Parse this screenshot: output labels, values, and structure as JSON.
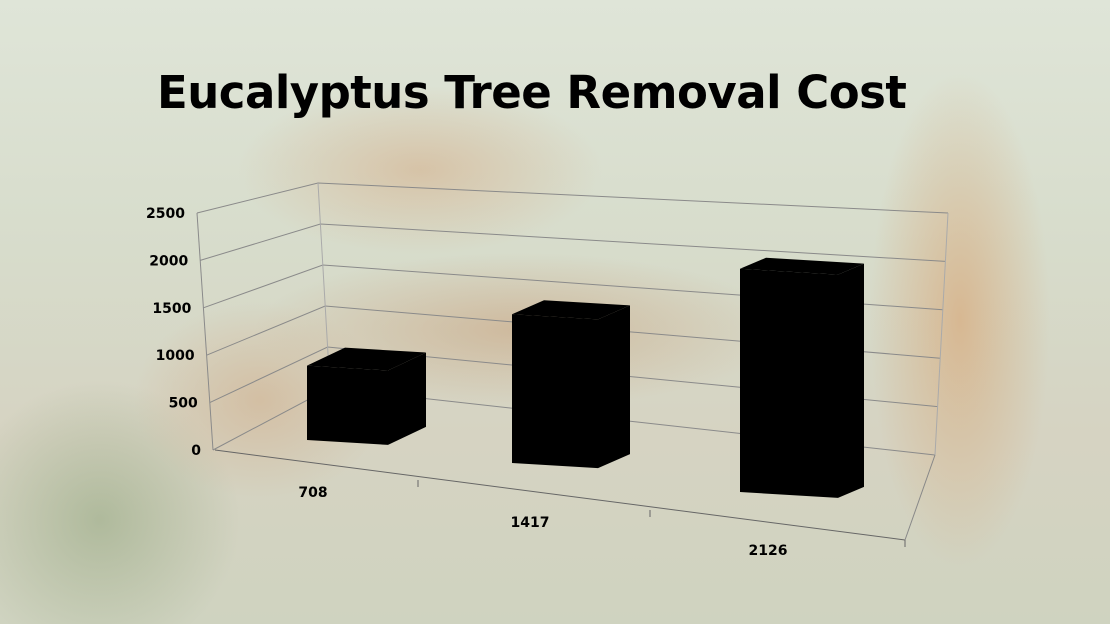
{
  "title": "Eucalyptus Tree Removal Cost",
  "chart_data": {
    "type": "bar",
    "style": "3d-column",
    "title": "Eucalyptus Tree Removal Cost",
    "categories": [
      "708",
      "1417",
      "2126"
    ],
    "values": [
      708,
      1417,
      2126
    ],
    "ylim": [
      0,
      2500
    ],
    "yticks": [
      "0",
      "500",
      "1000",
      "1500",
      "2000",
      "2500"
    ],
    "grid": true,
    "legend": "none",
    "bar_color": "#000000"
  }
}
